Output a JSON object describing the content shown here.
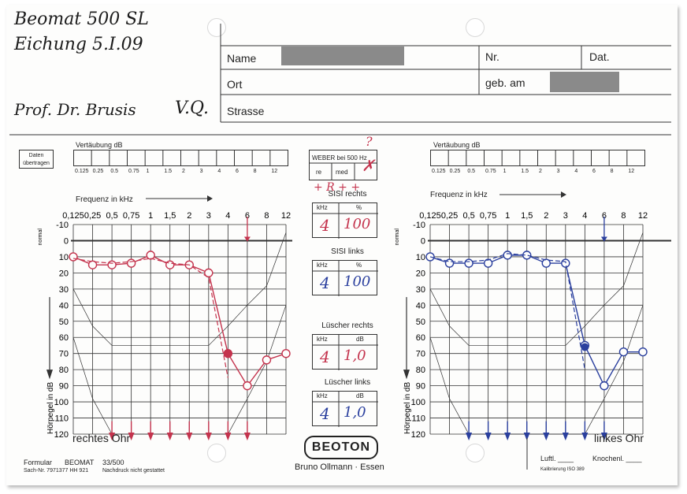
{
  "handwriting": {
    "device": "Beomat 500 SL",
    "calibration": "Eichung 5.I.09",
    "doctor": "Prof. Dr. Brusis",
    "initials": "V.Q."
  },
  "header": {
    "name_label": "Name",
    "nr_label": "Nr.",
    "dat_label": "Dat.",
    "ort_label": "Ort",
    "geb_label": "geb. am",
    "strasse_label": "Strasse"
  },
  "left_panel": {
    "daten_label": "Daten übertragen",
    "masking_title": "Vertäubung dB",
    "masking_freqs": [
      "0.125",
      "0.25",
      "0.5",
      "0.75",
      "1",
      "1.5",
      "2",
      "3",
      "4",
      "6",
      "8",
      "12"
    ],
    "freq_title": "Frequenz in kHz",
    "freq_ticks": [
      "0,125",
      "0,25",
      "0,5",
      "0,75",
      "1",
      "1,5",
      "2",
      "3",
      "4",
      "6",
      "8",
      "12"
    ],
    "db_ticks": [
      "-10",
      "0",
      "10",
      "20",
      "30",
      "40",
      "50",
      "60",
      "70",
      "80",
      "90",
      "100",
      "110",
      "120"
    ],
    "normal_label": "normal",
    "y_label": "Hörpegel in dB",
    "ear_label": "rechtes Ohr"
  },
  "right_panel": {
    "masking_title": "Vertäubung dB",
    "masking_freqs": [
      "0.125",
      "0.25",
      "0.5",
      "0.75",
      "1",
      "1.5",
      "2",
      "3",
      "4",
      "6",
      "8",
      "12"
    ],
    "freq_title": "Frequenz in kHz",
    "freq_ticks": [
      "0,125",
      "0,25",
      "0,5",
      "0,75",
      "1",
      "1,5",
      "2",
      "3",
      "4",
      "6",
      "8",
      "12"
    ],
    "db_ticks": [
      "-10",
      "0",
      "10",
      "20",
      "30",
      "40",
      "50",
      "60",
      "70",
      "80",
      "90",
      "100",
      "110",
      "120"
    ],
    "normal_label": "normal",
    "y_label": "Hörpegel in dB",
    "ear_label": "linkes Ohr"
  },
  "center": {
    "weber_title": "WEBER bei 500 Hz",
    "weber_cells": [
      "re",
      "med",
      "li"
    ],
    "weber_question": "?",
    "weber_note": "+ R + +",
    "sisi_r_title": "SISI rechts",
    "sisi_l_title": "SISI links",
    "luscher_r_title": "Lüscher rechts",
    "luscher_l_title": "Lüscher links",
    "khz": "kHz",
    "pct": "%",
    "db": "dB",
    "sisi_r": {
      "khz": "4",
      "val": "100"
    },
    "sisi_l": {
      "khz": "4",
      "val": "100"
    },
    "luscher_r": {
      "khz": "4",
      "val": "1,0"
    },
    "luscher_l": {
      "khz": "4",
      "val": "1,0"
    }
  },
  "footer": {
    "formular": "Formular",
    "beomat": "BEOMAT",
    "formno": "33/500",
    "sach": "Sach-Nr. 7971377 HH 921",
    "nachdruck": "Nachdruck nicht gestattet",
    "logo": "BEOTON",
    "company": "Bruno Ollmann · Essen",
    "luftl": "Luftl. ____",
    "knochenl": "Knochenl. ____",
    "kalib": "Kalibrierung ISO 389"
  },
  "colors": {
    "red": "#c4334d",
    "blue": "#2a3f9e",
    "ink": "#222222"
  },
  "chart_data": [
    {
      "type": "line",
      "title": "rechtes Ohr",
      "xlabel": "Frequenz in kHz",
      "ylabel": "Hörpegel in dB",
      "x": [
        0.125,
        0.25,
        0.5,
        0.75,
        1,
        1.5,
        2,
        3,
        4,
        6,
        8,
        12
      ],
      "ylim": [
        -10,
        120
      ],
      "series": [
        {
          "marker": "circle",
          "color": "#c4334d",
          "points": [
            [
              0.125,
              10
            ],
            [
              0.25,
              15
            ],
            [
              0.5,
              15
            ],
            [
              0.75,
              14
            ],
            [
              1,
              9
            ],
            [
              1.5,
              15
            ],
            [
              2,
              15
            ],
            [
              3,
              20
            ],
            [
              4,
              70
            ],
            [
              6,
              90
            ],
            [
              8,
              74
            ],
            [
              12,
              70
            ]
          ]
        },
        {
          "marker": "filled",
          "color": "#c4334d",
          "points": [
            [
              4,
              70
            ]
          ]
        },
        {
          "marker": "bone-dashed",
          "color": "#c4334d",
          "points": [
            [
              0.125,
              11
            ],
            [
              0.25,
              13
            ],
            [
              0.5,
              14
            ],
            [
              0.75,
              13
            ],
            [
              1,
              11
            ],
            [
              1.5,
              14
            ],
            [
              2,
              15
            ],
            [
              3,
              23
            ],
            [
              4,
              85
            ]
          ]
        },
        {
          "marker": "no-response",
          "color": "#c4334d",
          "x": [
            0.5,
            0.75,
            1,
            1.5,
            2,
            3,
            4,
            6
          ]
        }
      ]
    },
    {
      "type": "line",
      "title": "linkes Ohr",
      "xlabel": "Frequenz in kHz",
      "ylabel": "Hörpegel in dB",
      "x": [
        0.125,
        0.25,
        0.5,
        0.75,
        1,
        1.5,
        2,
        3,
        4,
        6,
        8,
        12
      ],
      "ylim": [
        -10,
        120
      ],
      "series": [
        {
          "marker": "circle",
          "color": "#2a3f9e",
          "points": [
            [
              0.125,
              10
            ],
            [
              0.25,
              14
            ],
            [
              0.5,
              14
            ],
            [
              0.75,
              14
            ],
            [
              1,
              9
            ],
            [
              1.5,
              9
            ],
            [
              2,
              14
            ],
            [
              3,
              14
            ],
            [
              4,
              65
            ],
            [
              6,
              90
            ],
            [
              8,
              69
            ],
            [
              12,
              69
            ]
          ]
        },
        {
          "marker": "filled",
          "color": "#2a3f9e",
          "points": [
            [
              4,
              66
            ]
          ]
        },
        {
          "marker": "bone-dashed",
          "color": "#2a3f9e",
          "points": [
            [
              0.125,
              10
            ],
            [
              0.25,
              13
            ],
            [
              0.5,
              13
            ],
            [
              0.75,
              12
            ],
            [
              1,
              8
            ],
            [
              1.5,
              9
            ],
            [
              2,
              12
            ],
            [
              3,
              13
            ],
            [
              4,
              80
            ]
          ]
        },
        {
          "marker": "no-response",
          "color": "#2a3f9e",
          "x": [
            0.5,
            0.75,
            1,
            1.5,
            2,
            3,
            4,
            6
          ]
        }
      ]
    }
  ]
}
